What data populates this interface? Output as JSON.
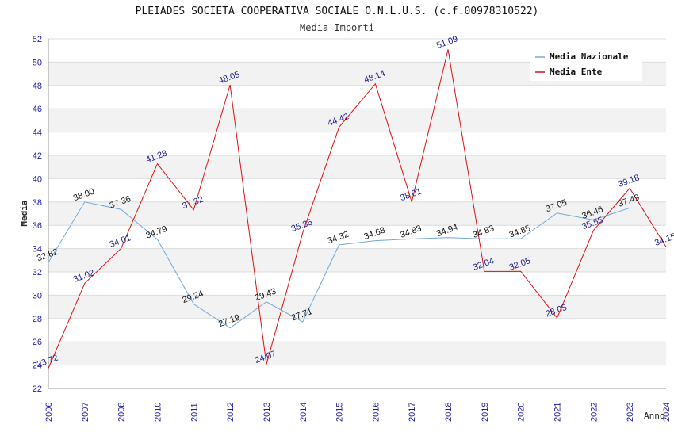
{
  "chart_data": {
    "type": "line",
    "title": "PLEIADES SOCIETA COOPERATIVA SOCIALE O.N.L.U.S. (c.f.00978310522)",
    "subtitle": "Media Importi",
    "xlabel": "Anno",
    "ylabel": "Media",
    "ylim": [
      22,
      52
    ],
    "ytick_step": 2,
    "grid": true,
    "legend_position": "top-right",
    "categories": [
      "2006",
      "2007",
      "2008",
      "2010",
      "2011",
      "2012",
      "2013",
      "2014",
      "2015",
      "2016",
      "2017",
      "2018",
      "2019",
      "2020",
      "2021",
      "2022",
      "2023",
      "2024"
    ],
    "series": [
      {
        "name": "Media Nazionale",
        "color": "#6fa8dc",
        "values": [
          32.82,
          38.0,
          37.36,
          34.79,
          29.24,
          27.19,
          29.43,
          27.71,
          34.32,
          34.68,
          34.83,
          34.94,
          34.83,
          34.85,
          37.05,
          36.46,
          37.49,
          null
        ],
        "labels": [
          "32.82",
          "38.00",
          "37.36",
          "34.79",
          "29.24",
          "27.19",
          "29.43",
          "27.71",
          "34.32",
          "34.68",
          "34.83",
          "34.94",
          "34.83",
          "34.85",
          "37.05",
          "36.46",
          "37.49",
          null
        ]
      },
      {
        "name": "Media Ente",
        "color": "#e01010",
        "values": [
          23.72,
          31.02,
          34.01,
          41.28,
          37.32,
          48.05,
          24.07,
          35.36,
          44.42,
          48.14,
          38.01,
          51.09,
          32.04,
          32.05,
          28.05,
          35.55,
          39.18,
          34.15
        ],
        "labels": [
          "23.72",
          "31.02",
          "34.01",
          "41.28",
          "37.32",
          "48.05",
          "24.07",
          "35.36",
          "44.42",
          "48.14",
          "38.01",
          "51.09",
          "32.04",
          "32.05",
          "28.05",
          "35.55",
          "39.18",
          "34.15"
        ]
      }
    ]
  }
}
